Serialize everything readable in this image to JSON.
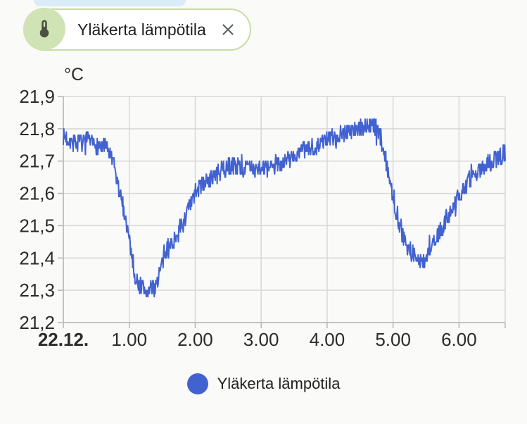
{
  "header": {
    "chip": {
      "label": "Yläkerta lämpötila",
      "icon": "thermometer-icon",
      "close_icon": "close-icon"
    }
  },
  "colors": {
    "series": "#4262d0",
    "chip_avatar_bg": "#cfe3b4",
    "chip_border": "#c8dda6",
    "chip_icon": "#4a5140",
    "close_icon": "#5f6368",
    "partial_chip": "#d9ecf8",
    "page_bg": "#fafaf9",
    "grid": "#d7d7d7",
    "axis": "#b5b5b5",
    "tick_label": "#2b2b2b",
    "text": "#212121"
  },
  "chart_data": {
    "type": "line",
    "title": "",
    "unit": "°C",
    "grid": true,
    "legend_position": "bottom",
    "x_tick_labels": [
      "22.12.",
      "1.00",
      "2.00",
      "3.00",
      "4.00",
      "5.00",
      "6.00"
    ],
    "x_tick_hours": [
      0,
      1,
      2,
      3,
      4,
      5,
      6
    ],
    "x_hours_range": [
      0,
      6.7
    ],
    "ylim": [
      21.2,
      21.9
    ],
    "y_tick_labels": [
      "21,9",
      "21,8",
      "21,7",
      "21,6",
      "21,5",
      "21,4",
      "21,3",
      "21,2"
    ],
    "y_tick_values": [
      21.9,
      21.8,
      21.7,
      21.6,
      21.5,
      21.4,
      21.3,
      21.2
    ],
    "series": [
      {
        "name": "Yläkerta lämpötila",
        "color": "#4262d0",
        "noise_amplitude": 0.028,
        "sample_count": 900,
        "trend_points": [
          [
            0.0,
            21.775
          ],
          [
            0.1,
            21.765
          ],
          [
            0.22,
            21.755
          ],
          [
            0.35,
            21.76
          ],
          [
            0.48,
            21.75
          ],
          [
            0.6,
            21.745
          ],
          [
            0.7,
            21.73
          ],
          [
            0.78,
            21.67
          ],
          [
            0.88,
            21.58
          ],
          [
            0.96,
            21.51
          ],
          [
            1.03,
            21.42
          ],
          [
            1.09,
            21.34
          ],
          [
            1.16,
            21.315
          ],
          [
            1.26,
            21.295
          ],
          [
            1.38,
            21.305
          ],
          [
            1.46,
            21.355
          ],
          [
            1.54,
            21.41
          ],
          [
            1.62,
            21.44
          ],
          [
            1.72,
            21.47
          ],
          [
            1.82,
            21.51
          ],
          [
            1.92,
            21.56
          ],
          [
            2.02,
            21.61
          ],
          [
            2.15,
            21.635
          ],
          [
            2.3,
            21.655
          ],
          [
            2.45,
            21.675
          ],
          [
            2.6,
            21.69
          ],
          [
            2.75,
            21.675
          ],
          [
            2.88,
            21.68
          ],
          [
            3.0,
            21.685
          ],
          [
            3.1,
            21.67
          ],
          [
            3.22,
            21.69
          ],
          [
            3.35,
            21.7
          ],
          [
            3.5,
            21.715
          ],
          [
            3.65,
            21.73
          ],
          [
            3.8,
            21.745
          ],
          [
            3.95,
            21.76
          ],
          [
            4.1,
            21.775
          ],
          [
            4.25,
            21.79
          ],
          [
            4.4,
            21.8
          ],
          [
            4.55,
            21.805
          ],
          [
            4.68,
            21.81
          ],
          [
            4.78,
            21.79
          ],
          [
            4.86,
            21.73
          ],
          [
            4.94,
            21.65
          ],
          [
            5.02,
            21.57
          ],
          [
            5.1,
            21.5
          ],
          [
            5.18,
            21.455
          ],
          [
            5.27,
            21.42
          ],
          [
            5.36,
            21.395
          ],
          [
            5.44,
            21.385
          ],
          [
            5.52,
            21.41
          ],
          [
            5.63,
            21.45
          ],
          [
            5.75,
            21.5
          ],
          [
            5.88,
            21.55
          ],
          [
            6.0,
            21.595
          ],
          [
            6.12,
            21.63
          ],
          [
            6.25,
            21.66
          ],
          [
            6.38,
            21.685
          ],
          [
            6.5,
            21.7
          ],
          [
            6.62,
            21.715
          ],
          [
            6.7,
            21.72
          ]
        ]
      }
    ]
  },
  "legend": {
    "label": "Yläkerta lämpötila",
    "marker": "circle"
  }
}
